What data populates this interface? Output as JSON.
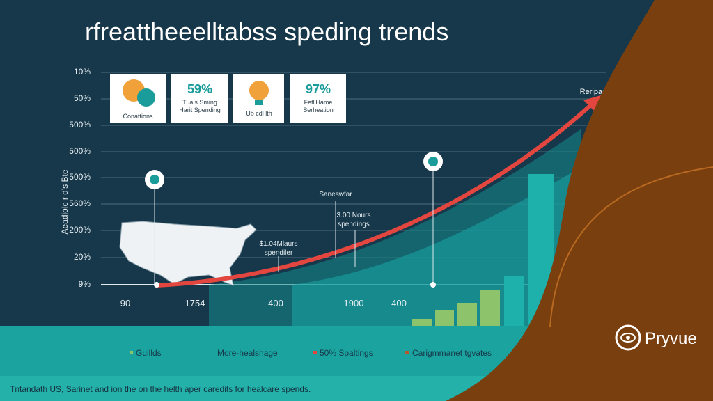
{
  "title": "rfreattheeelltabss speding trends",
  "axis": {
    "y_label": "Aeadiolc r d's Bte",
    "y_labels": [
      "10%",
      "50%",
      "500%",
      "500%",
      "500%",
      "560%",
      "200%",
      "20%",
      "9%"
    ],
    "x_labels": [
      "90",
      "1754",
      "400",
      "1900",
      "400"
    ]
  },
  "cards": [
    {
      "caption": "Conattions"
    },
    {
      "stat": "59%",
      "lines": [
        "Tuals Sming",
        "Harit Spending"
      ]
    },
    {
      "caption": "Ub cdl lth"
    },
    {
      "stat": "97%",
      "lines": [
        "Fetl'Hame",
        "Serheation"
      ]
    }
  ],
  "annotations": {
    "arrow_label": "Reripage",
    "callout_1": "Saneswfar",
    "callout_2": [
      "3.00 Nours",
      "spendings"
    ],
    "callout_3": [
      "$1.04Mlaurs",
      "spendiler"
    ]
  },
  "legend": [
    "Guillds",
    "More-healshage",
    "50% Spaltings",
    "Carigmmanet tgvates"
  ],
  "footer": "Tntandath US, Sarinet and ion the on the helth aper caredits for healcare spends.",
  "brand": "Pryvue"
}
